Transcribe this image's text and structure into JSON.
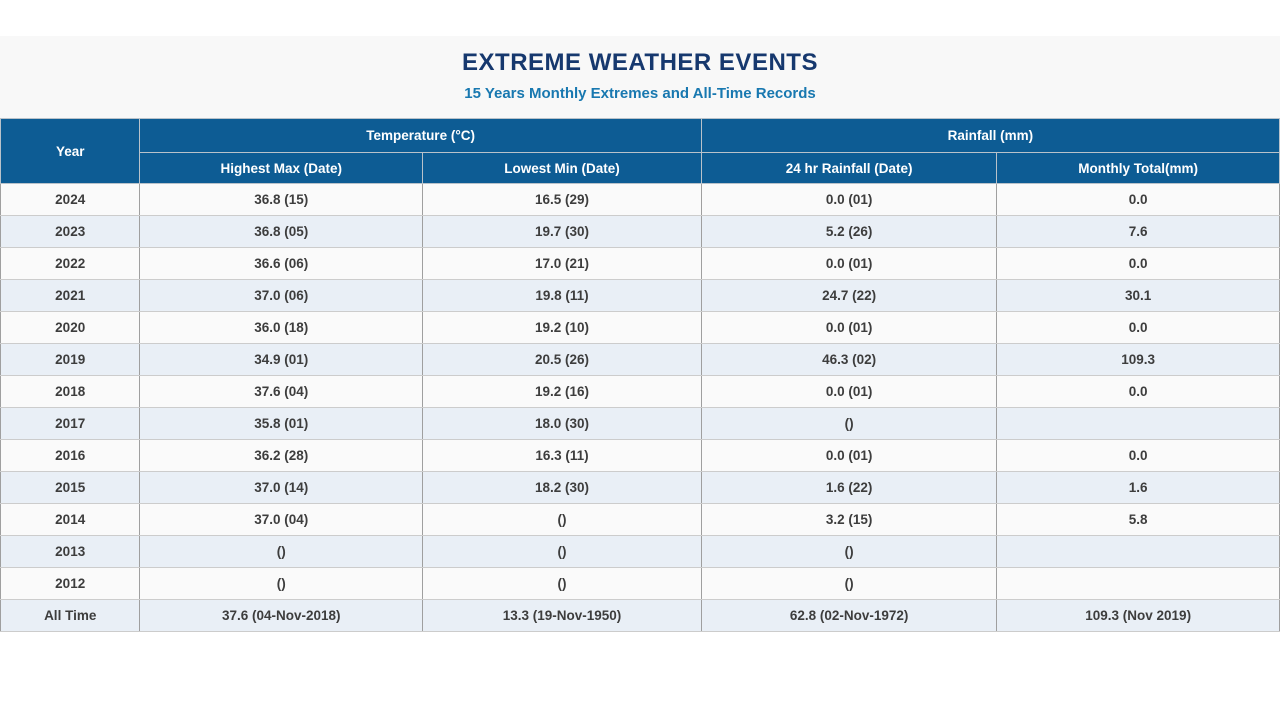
{
  "page": {
    "title": "EXTREME WEATHER EVENTS",
    "subtitle": "15 Years Monthly Extremes and All-Time Records"
  },
  "theme": {
    "header_bg": "#0d5c94",
    "header_text": "#ffffff",
    "title_color": "#16386e",
    "subtitle_color": "#1878b0",
    "band_bg": "#f8f8f8",
    "row_odd_bg": "#fafafa",
    "row_even_bg": "#e9eff6",
    "cell_text": "#3d3d3d"
  },
  "table": {
    "headers": {
      "year": "Year",
      "temperature_group": "Temperature (°C)",
      "rainfall_group": "Rainfall (mm)",
      "highest_max": "Highest Max (Date)",
      "lowest_min": "Lowest Min (Date)",
      "rain_24hr": "24 hr Rainfall (Date)",
      "monthly_total": "Monthly Total(mm)"
    },
    "rows": [
      {
        "year": "2024",
        "highest_max": "36.8 (15)",
        "lowest_min": "16.5 (29)",
        "rain_24hr": "0.0 (01)",
        "monthly_total": "0.0"
      },
      {
        "year": "2023",
        "highest_max": "36.8 (05)",
        "lowest_min": "19.7 (30)",
        "rain_24hr": "5.2 (26)",
        "monthly_total": "7.6"
      },
      {
        "year": "2022",
        "highest_max": "36.6 (06)",
        "lowest_min": "17.0 (21)",
        "rain_24hr": "0.0 (01)",
        "monthly_total": "0.0"
      },
      {
        "year": "2021",
        "highest_max": "37.0 (06)",
        "lowest_min": "19.8 (11)",
        "rain_24hr": "24.7 (22)",
        "monthly_total": "30.1"
      },
      {
        "year": "2020",
        "highest_max": "36.0 (18)",
        "lowest_min": "19.2 (10)",
        "rain_24hr": "0.0 (01)",
        "monthly_total": "0.0"
      },
      {
        "year": "2019",
        "highest_max": "34.9 (01)",
        "lowest_min": "20.5 (26)",
        "rain_24hr": "46.3 (02)",
        "monthly_total": "109.3"
      },
      {
        "year": "2018",
        "highest_max": "37.6 (04)",
        "lowest_min": "19.2 (16)",
        "rain_24hr": "0.0 (01)",
        "monthly_total": "0.0"
      },
      {
        "year": "2017",
        "highest_max": "35.8 (01)",
        "lowest_min": "18.0 (30)",
        "rain_24hr": "()",
        "monthly_total": ""
      },
      {
        "year": "2016",
        "highest_max": "36.2 (28)",
        "lowest_min": "16.3 (11)",
        "rain_24hr": "0.0 (01)",
        "monthly_total": "0.0"
      },
      {
        "year": "2015",
        "highest_max": "37.0 (14)",
        "lowest_min": "18.2 (30)",
        "rain_24hr": "1.6 (22)",
        "monthly_total": "1.6"
      },
      {
        "year": "2014",
        "highest_max": "37.0 (04)",
        "lowest_min": "()",
        "rain_24hr": "3.2 (15)",
        "monthly_total": "5.8"
      },
      {
        "year": "2013",
        "highest_max": "()",
        "lowest_min": "()",
        "rain_24hr": "()",
        "monthly_total": ""
      },
      {
        "year": "2012",
        "highest_max": "()",
        "lowest_min": "()",
        "rain_24hr": "()",
        "monthly_total": ""
      },
      {
        "year": "All Time",
        "highest_max": "37.6 (04-Nov-2018)",
        "lowest_min": "13.3 (19-Nov-1950)",
        "rain_24hr": "62.8 (02-Nov-1972)",
        "monthly_total": "109.3 (Nov 2019)"
      }
    ]
  }
}
